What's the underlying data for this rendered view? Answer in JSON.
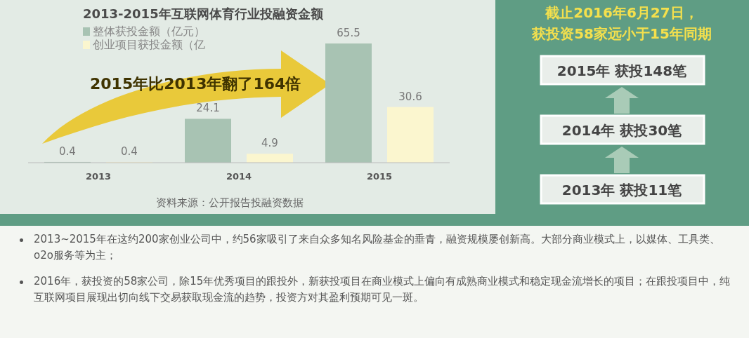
{
  "chart_data": [
    {
      "type": "bar",
      "title": "2013-2015年互联网体育行业投融资金额",
      "categories": [
        "2013",
        "2014",
        "2015"
      ],
      "series": [
        {
          "name": "整体获投金额（亿元）",
          "color": "#a8c3b3",
          "values": [
            0.4,
            24.1,
            65.5
          ]
        },
        {
          "name": "创业项目获投金额（亿",
          "color": "#fbf6cf",
          "values": [
            0.4,
            4.9,
            30.6
          ]
        }
      ],
      "data_labels": true,
      "legend": "top left",
      "annotations": [
        "2015年比2013年翻了164倍",
        "资料来源：公开报告投融资数据"
      ]
    },
    {
      "type": "other",
      "title": "截止2016年6月27日，获投资58家远小于15年同期",
      "annotations": [
        "2015年 获投148笔",
        "2014年 获投30笔",
        "2013年 获投11笔"
      ]
    },
    {
      "type": "other",
      "annotations": [
        "2013~2015年在这约200家创业公司中，约56家吸引了来自众多知名风险基金的垂青，融资规模屡创新高。大部分商业模式上，以媒体、工具类、o2o服务等为主；",
        "2016年，获投资的58家公司，除15年优秀项目的跟投外，新获投项目在商业模式上偏向有成熟商业模式和稳定现金流增长的项目；在跟投项目中，纯互联网项目展现出切向线下交易获取现金流的趋势，投资方对其盈利预期可见一斑。"
      ]
    }
  ]
}
